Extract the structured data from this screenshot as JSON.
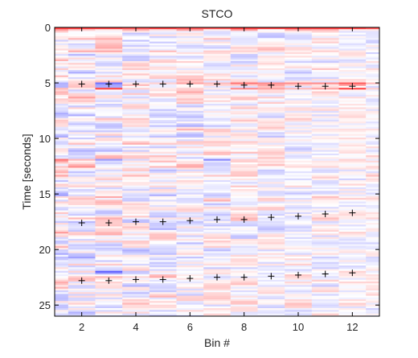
{
  "chart_data": {
    "type": "heatmap",
    "title": "STCO",
    "xlabel": "Bin #",
    "ylabel": "Time [seconds]",
    "xlim": [
      1,
      13
    ],
    "ylim": [
      0,
      26
    ],
    "y_reversed": true,
    "xticks": [
      2,
      4,
      6,
      8,
      10,
      12
    ],
    "yticks": [
      0,
      5,
      10,
      15,
      20,
      25
    ],
    "grid": false,
    "bins": [
      1,
      2,
      3,
      4,
      5,
      6,
      7,
      8,
      9,
      10,
      11,
      12,
      13
    ],
    "colormap": {
      "negative": "#3b3bff",
      "zero": "#ffffff",
      "positive": "#ff2020"
    },
    "strong_rows": [
      {
        "t": 0.0,
        "values": [
          0.9,
          0.9,
          0.9,
          0.8,
          0.9,
          0.8,
          0.8,
          0.9,
          0.9,
          0.9,
          0.9,
          0.9,
          0.8
        ]
      },
      {
        "t": 5.0,
        "values": [
          -0.4,
          0.2,
          -0.7,
          0.1,
          0.2,
          0.4,
          0.3,
          0.6,
          0.5,
          0.5,
          0.5,
          0.7,
          0.3
        ]
      },
      {
        "t": 5.4,
        "values": [
          0.3,
          0.1,
          0.8,
          0.2,
          0.1,
          0.2,
          0.1,
          0.5,
          0.4,
          0.3,
          0.4,
          0.8,
          0.2
        ]
      },
      {
        "t": 11.8,
        "values": [
          0.6,
          0.3,
          -0.5,
          -0.2,
          0.1,
          0.0,
          -0.6,
          0.2,
          0.1,
          0.0,
          -0.1,
          0.2,
          -0.1
        ]
      },
      {
        "t": 21.9,
        "values": [
          -0.2,
          0.2,
          -0.8,
          -0.3,
          0.1,
          0.0,
          0.1,
          0.1,
          0.0,
          -0.1,
          0.0,
          0.2,
          -0.1
        ]
      }
    ],
    "markers": {
      "symbol": "+",
      "series": [
        {
          "x": [
            2,
            3,
            4,
            5,
            6,
            7,
            8,
            9,
            10,
            11,
            12
          ],
          "y": [
            5.1,
            5.1,
            5.1,
            5.1,
            5.1,
            5.1,
            5.2,
            5.2,
            5.3,
            5.3,
            5.3
          ]
        },
        {
          "x": [
            2,
            3,
            4,
            5,
            6,
            7,
            8,
            9,
            10,
            11,
            12
          ],
          "y": [
            17.6,
            17.6,
            17.5,
            17.5,
            17.4,
            17.3,
            17.3,
            17.1,
            17.0,
            16.8,
            16.7
          ]
        },
        {
          "x": [
            2,
            3,
            4,
            5,
            6,
            7,
            8,
            9,
            10,
            11,
            12
          ],
          "y": [
            22.8,
            22.8,
            22.7,
            22.7,
            22.6,
            22.5,
            22.5,
            22.4,
            22.3,
            22.2,
            22.1
          ]
        }
      ]
    }
  }
}
